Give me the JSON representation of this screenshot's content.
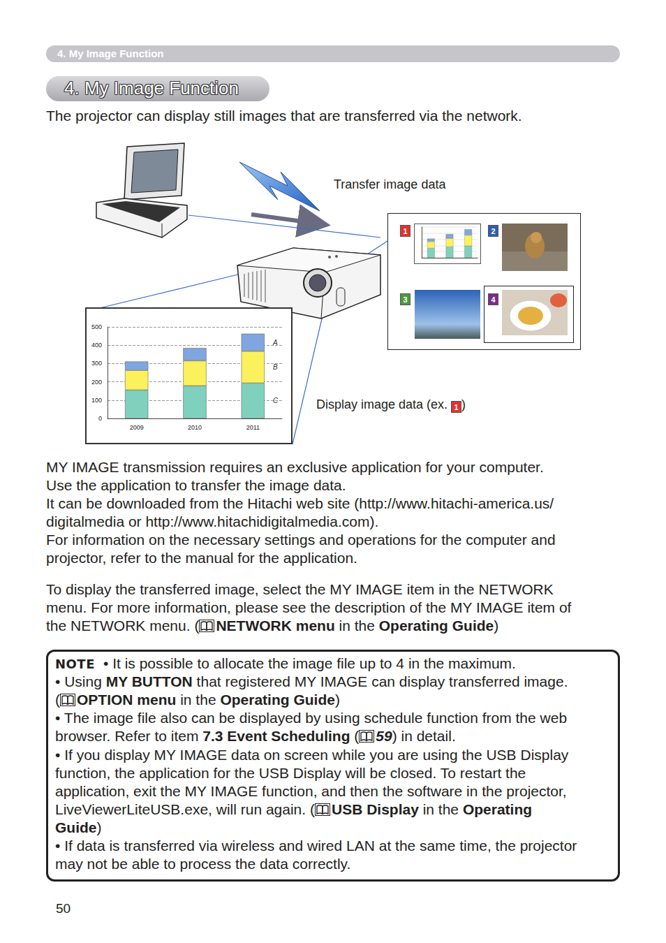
{
  "header": {
    "running_title": "4. My Image Function",
    "title": "4. My Image Function"
  },
  "intro": "The projector can display still images that are transferred via the network.",
  "diagram": {
    "transfer_label": "Transfer image data",
    "display_label": {
      "before": "Display image data (ex. ",
      "badge": "1",
      "after": ")"
    },
    "thumbnails": [
      "1",
      "2",
      "3",
      "4"
    ]
  },
  "chart_data": {
    "type": "bar",
    "stacked": true,
    "categories": [
      "2009",
      "2010",
      "2011"
    ],
    "series": [
      {
        "name": "C",
        "color": "#7fd1be",
        "values": [
          155,
          178,
          193
        ]
      },
      {
        "name": "B",
        "color": "#fbf15c",
        "values": [
          108,
          137,
          174
        ]
      },
      {
        "name": "A",
        "color": "#7fa6de",
        "values": [
          48,
          70,
          96
        ]
      }
    ],
    "ylim": [
      0,
      500
    ],
    "yticks": [
      0,
      100,
      200,
      300,
      400,
      500
    ],
    "grid": true
  },
  "paragraphs": [
    [
      [
        "MY IMAGE transmission requires an exclusive application for your computer."
      ],
      [
        "Use the application to transfer the image data."
      ],
      [
        "It can be downloaded from the Hitachi web site (http://www.hitachi-america.us/"
      ],
      [
        "digitalmedia or http://www.hitachidigitalmedia.com)."
      ],
      [
        "For information on the necessary settings and operations for the computer and"
      ],
      [
        "projector, refer to the manual for the application."
      ]
    ],
    [
      [
        "To display the transferred image, select the MY IMAGE item in the NETWORK"
      ],
      [
        "menu. For more information, please see the description of the MY IMAGE item of"
      ],
      [
        "the NETWORK menu. (",
        {
          "text": "NETWORK menu",
          "bold": true,
          "book": true
        },
        " in the ",
        {
          "text": "Operating Guide",
          "bold": true
        },
        ")"
      ]
    ]
  ],
  "note": {
    "label": "NOTE",
    "lines": [
      [
        "• It is possible to allocate the image file up to 4 in the maximum."
      ],
      [
        "• Using ",
        {
          "text": "MY BUTTON",
          "bold": true
        },
        " that registered MY IMAGE can display transferred image."
      ],
      [
        "(",
        {
          "text": "OPTION menu",
          "bold": true,
          "book": true
        },
        " in the ",
        {
          "text": "Operating Guide",
          "bold": true
        },
        ")"
      ],
      [
        "• The image file also can be displayed by using schedule function from the web"
      ],
      [
        "browser. Refer to item ",
        {
          "text": "7.3 Event Scheduling",
          "bold": true
        },
        " (",
        {
          "text": "59",
          "bold": true,
          "italic": true,
          "book": true
        },
        ") in detail."
      ],
      [
        "• If you display MY IMAGE data on screen while you are using the USB Display"
      ],
      [
        "function, the application for the USB Display will be closed. To restart the"
      ],
      [
        "application, exit the MY IMAGE function, and then the software in the projector,"
      ],
      [
        "LiveViewerLiteUSB.exe, will run again. (",
        {
          "text": "USB Display",
          "bold": true,
          "book": true
        },
        " in the ",
        {
          "text": "Operating",
          "bold": true
        }
      ],
      [
        {
          "text": "Guide",
          "bold": true
        },
        ")"
      ],
      [
        "• If data is transferred via wireless and wired LAN at the same time, the projector"
      ],
      [
        "may not be able to process the data correctly."
      ]
    ]
  },
  "page_number": "50"
}
